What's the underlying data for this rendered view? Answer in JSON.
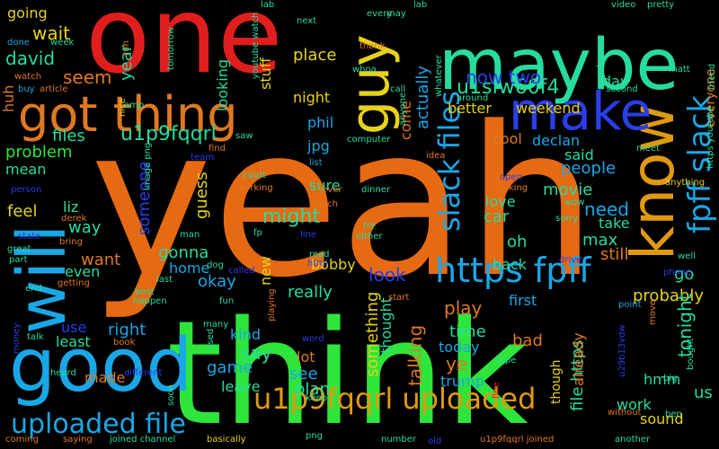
{
  "words": [
    {
      "id": "yeah",
      "text": "yeah",
      "color": "#e56a12"
    },
    {
      "id": "think",
      "text": "think",
      "color": "#2ee53c"
    },
    {
      "id": "one",
      "text": "one",
      "color": "#e01e1e"
    },
    {
      "id": "maybe",
      "text": "maybe",
      "color": "#26dca0"
    },
    {
      "id": "good",
      "text": "good",
      "color": "#1aa7e6"
    },
    {
      "id": "got-thing",
      "text": "got thing",
      "color": "#e07820"
    },
    {
      "id": "will",
      "text": "will",
      "color": "#1aa7e6"
    },
    {
      "id": "know",
      "text": "know",
      "color": "#e09a10"
    },
    {
      "id": "make",
      "text": "make",
      "color": "#2a3ee8"
    },
    {
      "id": "guy",
      "text": "guy",
      "color": "#e6d21a"
    },
    {
      "id": "uploaded-file",
      "text": "uploaded file",
      "color": "#1aa7e6"
    },
    {
      "id": "u1p9fqqrl-uploaded",
      "text": "u1p9fqqrl uploaded",
      "color": "#e09a10"
    },
    {
      "id": "https-fpff",
      "text": "https fpff",
      "color": "#1aa7e6"
    },
    {
      "id": "slack-files",
      "text": "slack files",
      "color": "#1aa7e6"
    },
    {
      "id": "fpff-slack",
      "text": "fpff slack",
      "color": "#1aa7e6"
    },
    {
      "id": "u1p9fqqrl",
      "text": "u1p9fqqrl",
      "color": "#26dca0"
    },
    {
      "id": "u1sfw60f4",
      "text": "u1sfw60f4",
      "color": "#26dca0"
    },
    {
      "id": "now-two",
      "text": "now two",
      "color": "#2a3ee8"
    },
    {
      "id": "wait",
      "text": "wait",
      "color": "#e6d21a"
    },
    {
      "id": "david",
      "text": "david",
      "color": "#26dca0"
    },
    {
      "id": "seem",
      "text": "seem",
      "color": "#e07820"
    },
    {
      "id": "files",
      "text": "files",
      "color": "#26dca0"
    },
    {
      "id": "problem",
      "text": "problem",
      "color": "#2ee53c"
    },
    {
      "id": "mean",
      "text": "mean",
      "color": "#26dca0"
    },
    {
      "id": "feel",
      "text": "feel",
      "color": "#e6d21a"
    },
    {
      "id": "liz",
      "text": "liz",
      "color": "#26dca0"
    },
    {
      "id": "way",
      "text": "way",
      "color": "#26dca0"
    },
    {
      "id": "gonna",
      "text": "gonna",
      "color": "#26dca0"
    },
    {
      "id": "home",
      "text": "home",
      "color": "#1aa7e6"
    },
    {
      "id": "want",
      "text": "want",
      "color": "#e07820"
    },
    {
      "id": "even",
      "text": "even",
      "color": "#26dca0"
    },
    {
      "id": "right",
      "text": "right",
      "color": "#1aa7e6"
    },
    {
      "id": "least",
      "text": "least",
      "color": "#26dca0"
    },
    {
      "id": "use",
      "text": "use",
      "color": "#2a3ee8"
    },
    {
      "id": "made",
      "text": "made",
      "color": "#e07820"
    },
    {
      "id": "okay",
      "text": "okay",
      "color": "#1aa7e6"
    },
    {
      "id": "game",
      "text": "game",
      "color": "#1aa7e6"
    },
    {
      "id": "leave",
      "text": "leave",
      "color": "#26dca0"
    },
    {
      "id": "say",
      "text": "say",
      "color": "#26dca0"
    },
    {
      "id": "kind",
      "text": "kind",
      "color": "#1aa7e6"
    },
    {
      "id": "might",
      "text": "might",
      "color": "#26dca0"
    },
    {
      "id": "bobby",
      "text": "bobby",
      "color": "#e6d21a"
    },
    {
      "id": "look",
      "text": "look",
      "color": "#2a3ee8"
    },
    {
      "id": "really",
      "text": "really",
      "color": "#26dca0"
    },
    {
      "id": "lot",
      "text": "lot",
      "color": "#e07820"
    },
    {
      "id": "see",
      "text": "see",
      "color": "#1aa7e6"
    },
    {
      "id": "plan",
      "text": "plan",
      "color": "#26dca0"
    },
    {
      "id": "something",
      "text": "something",
      "color": "#e6d21a"
    },
    {
      "id": "thought",
      "text": "thought",
      "color": "#26dca0"
    },
    {
      "id": "talking",
      "text": "talking",
      "color": "#e07820"
    },
    {
      "id": "play",
      "text": "play",
      "color": "#e07820"
    },
    {
      "id": "time",
      "text": "time",
      "color": "#26dca0"
    },
    {
      "id": "today",
      "text": "today",
      "color": "#1aa7e6"
    },
    {
      "id": "trump",
      "text": "trump",
      "color": "#1aa7e6"
    },
    {
      "id": "ye",
      "text": "ye",
      "color": "#e07820"
    },
    {
      "id": "bad",
      "text": "bad",
      "color": "#e07820"
    },
    {
      "id": "first",
      "text": "first",
      "color": "#1aa7e6"
    },
    {
      "id": "back",
      "text": "back",
      "color": "#26dca0"
    },
    {
      "id": "oh",
      "text": "oh",
      "color": "#26dca0"
    },
    {
      "id": "car",
      "text": "car",
      "color": "#26dca0"
    },
    {
      "id": "love",
      "text": "love",
      "color": "#26dca0"
    },
    {
      "id": "max",
      "text": "max",
      "color": "#26dca0"
    },
    {
      "id": "movie",
      "text": "movie",
      "color": "#26dca0"
    },
    {
      "id": "need",
      "text": "need",
      "color": "#1aa7e6"
    },
    {
      "id": "take",
      "text": "take",
      "color": "#26dca0"
    },
    {
      "id": "still",
      "text": "still",
      "color": "#e07820"
    },
    {
      "id": "go",
      "text": "go",
      "color": "#26dca0"
    },
    {
      "id": "people",
      "text": "people",
      "color": "#1aa7e6"
    },
    {
      "id": "said",
      "text": "said",
      "color": "#26dca0"
    },
    {
      "id": "cool",
      "text": "cool",
      "color": "#e07820"
    },
    {
      "id": "declan",
      "text": "declan",
      "color": "#1aa7e6"
    },
    {
      "id": "day",
      "text": "day",
      "color": "#26dca0"
    },
    {
      "id": "probably",
      "text": "probably",
      "color": "#e6d21a"
    },
    {
      "id": "tonight",
      "text": "tonight",
      "color": "#26dca0"
    },
    {
      "id": "file-https",
      "text": "file https",
      "color": "#26dca0"
    },
    {
      "id": "though",
      "text": "though",
      "color": "#e6d21a"
    },
    {
      "id": "already",
      "text": "already",
      "color": "#e07820"
    },
    {
      "id": "hmm",
      "text": "hmm",
      "color": "#26dca0"
    },
    {
      "id": "work",
      "text": "work",
      "color": "#26dca0"
    },
    {
      "id": "sound",
      "text": "sound",
      "color": "#e6d21a"
    },
    {
      "id": "us",
      "text": "us",
      "color": "#26dca0"
    },
    {
      "id": "everyone",
      "text": "everyone",
      "color": "#e07820"
    },
    {
      "id": "better",
      "text": "better",
      "color": "#e6d21a"
    },
    {
      "id": "weekend",
      "text": "weekend",
      "color": "#e6d21a"
    },
    {
      "id": "place",
      "text": "place",
      "color": "#e6d21a"
    },
    {
      "id": "night",
      "text": "night",
      "color": "#e6d21a"
    },
    {
      "id": "phil",
      "text": "phil",
      "color": "#1aa7e6"
    },
    {
      "id": "jpg",
      "text": "jpg",
      "color": "#1aa7e6"
    },
    {
      "id": "actually",
      "text": "actually",
      "color": "#1aa7e6"
    },
    {
      "id": "come",
      "text": "come",
      "color": "#e07820"
    },
    {
      "id": "sure",
      "text": "sure",
      "color": "#26dca0"
    },
    {
      "id": "guess",
      "text": "guess",
      "color": "#e6d21a"
    },
    {
      "id": "someone",
      "text": "someone",
      "color": "#2a3ee8"
    },
    {
      "id": "looking",
      "text": "looking",
      "color": "#26dca0"
    },
    {
      "id": "stuff",
      "text": "stuff",
      "color": "#e6d21a"
    },
    {
      "id": "year",
      "text": "year",
      "color": "#26dca0"
    },
    {
      "id": "going",
      "text": "going",
      "color": "#e6d21a"
    },
    {
      "id": "huh",
      "text": "huh",
      "color": "#e07820"
    },
    {
      "id": "new",
      "text": "new",
      "color": "#e6d21a"
    },
    {
      "id": "small-watch",
      "text": "watch",
      "color": "#e07820"
    },
    {
      "id": "small-done",
      "text": "done",
      "color": "#1aa7e6"
    },
    {
      "id": "small-week",
      "text": "week",
      "color": "#26dca0"
    },
    {
      "id": "small-buy",
      "text": "buy",
      "color": "#1aa7e6"
    },
    {
      "id": "small-article",
      "text": "article",
      "color": "#e07820"
    },
    {
      "id": "small-tomorrow",
      "text": "tomorrow",
      "color": "#26dca0"
    },
    {
      "id": "small-run",
      "text": "run",
      "color": "#e07820"
    },
    {
      "id": "small-lab",
      "text": "lab",
      "color": "#26dca0"
    },
    {
      "id": "small-youtube-watch",
      "text": "youtube watch",
      "color": "#26dca0"
    },
    {
      "id": "small-next",
      "text": "next",
      "color": "#26dca0"
    },
    {
      "id": "small-every",
      "text": "every",
      "color": "#26dca0"
    },
    {
      "id": "small-may",
      "text": "may",
      "color": "#26dca0"
    },
    {
      "id": "small-lab2",
      "text": "lab",
      "color": "#26dca0"
    },
    {
      "id": "small-video",
      "text": "video",
      "color": "#26dca0"
    },
    {
      "id": "small-pretty",
      "text": "pretty",
      "color": "#26dca0"
    },
    {
      "id": "small-thank",
      "text": "thank",
      "color": "#e07820"
    },
    {
      "id": "small-whoa",
      "text": "whoa",
      "color": "#26dca0"
    },
    {
      "id": "small-whatever",
      "text": "whatever",
      "color": "#26dca0"
    },
    {
      "id": "small-call",
      "text": "call",
      "color": "#26dca0"
    },
    {
      "id": "small-around",
      "text": "around",
      "color": "#26dca0"
    },
    {
      "id": "small-second",
      "text": "second",
      "color": "#26dca0"
    },
    {
      "id": "small-show",
      "text": "show",
      "color": "#26dca0"
    },
    {
      "id": "small-matt",
      "text": "matt",
      "color": "#26dca0"
    },
    {
      "id": "small-friend",
      "text": "friend",
      "color": "#26dca0"
    },
    {
      "id": "small-nice",
      "text": "nice",
      "color": "#e6d21a"
    },
    {
      "id": "small-amp",
      "text": "amp",
      "color": "#26dca0"
    },
    {
      "id": "small-anyone",
      "text": "anyone",
      "color": "#26dca0"
    },
    {
      "id": "small-computer",
      "text": "computer",
      "color": "#26dca0"
    },
    {
      "id": "small-idea",
      "text": "idea",
      "color": "#e07820"
    },
    {
      "id": "small-meet",
      "text": "meet",
      "color": "#26dca0"
    },
    {
      "id": "small-https-youtube",
      "text": "https youtube",
      "color": "#26dca0"
    },
    {
      "id": "small-find",
      "text": "find",
      "color": "#e07820"
    },
    {
      "id": "small-saw",
      "text": "saw",
      "color": "#26dca0"
    },
    {
      "id": "small-image-png",
      "text": "image png",
      "color": "#26dca0"
    },
    {
      "id": "small-team",
      "text": "team",
      "color": "#2a3ee8"
    },
    {
      "id": "small-list",
      "text": "list",
      "color": "#1aa7e6"
    },
    {
      "id": "small-court",
      "text": "court",
      "color": "#26dca0"
    },
    {
      "id": "small-working",
      "text": "working",
      "color": "#e07820"
    },
    {
      "id": "small-open",
      "text": "open",
      "color": "#2a3ee8"
    },
    {
      "id": "small-making",
      "text": "making",
      "color": "#e07820"
    },
    {
      "id": "small-anything",
      "text": "anything",
      "color": "#e6d21a"
    },
    {
      "id": "small-person",
      "text": "person",
      "color": "#2a3ee8"
    },
    {
      "id": "small-never",
      "text": "never",
      "color": "#e07820"
    },
    {
      "id": "small-dinner",
      "text": "dinner",
      "color": "#26dca0"
    },
    {
      "id": "small-wow",
      "text": "wow",
      "color": "#26dca0"
    },
    {
      "id": "small-much",
      "text": "much",
      "color": "#e07820"
    },
    {
      "id": "small-derek",
      "text": "derek",
      "color": "#e07820"
    },
    {
      "id": "small-sorry",
      "text": "sorry",
      "color": "#26dca0"
    },
    {
      "id": "small-man",
      "text": "man",
      "color": "#26dca0"
    },
    {
      "id": "small-fp",
      "text": "fp",
      "color": "#26dca0"
    },
    {
      "id": "small-line",
      "text": "line",
      "color": "#2a3ee8"
    },
    {
      "id": "small-try",
      "text": "try",
      "color": "#26dca0"
    },
    {
      "id": "small-either",
      "text": "either",
      "color": "#26dca0"
    },
    {
      "id": "small-state",
      "text": "state",
      "color": "#2a3ee8"
    },
    {
      "id": "small-bring",
      "text": "bring",
      "color": "#e07820"
    },
    {
      "id": "small-great",
      "text": "great",
      "color": "#26dca0"
    },
    {
      "id": "small-part",
      "text": "part",
      "color": "#26dca0"
    },
    {
      "id": "small-dog",
      "text": "dog",
      "color": "#26dca0"
    },
    {
      "id": "small-read",
      "text": "read",
      "color": "#26dca0"
    },
    {
      "id": "small-html",
      "text": "html",
      "color": "#2a3ee8"
    },
    {
      "id": "small-drive",
      "text": "drive",
      "color": "#2a3ee8"
    },
    {
      "id": "small-well",
      "text": "well",
      "color": "#26dca0"
    },
    {
      "id": "small-getting",
      "text": "getting",
      "color": "#e07820"
    },
    {
      "id": "small-called",
      "text": "called",
      "color": "#2a3ee8"
    },
    {
      "id": "small-phone",
      "text": "phone",
      "color": "#2a3ee8"
    },
    {
      "id": "small-end",
      "text": "end",
      "color": "#26dca0"
    },
    {
      "id": "small-last",
      "text": "last",
      "color": "#26dca0"
    },
    {
      "id": "small-best",
      "text": "best",
      "color": "#26dca0"
    },
    {
      "id": "small-happen",
      "text": "happen",
      "color": "#26dca0"
    },
    {
      "id": "small-fun",
      "text": "fun",
      "color": "#26dca0"
    },
    {
      "id": "small-playing",
      "text": "playing",
      "color": "#e07820"
    },
    {
      "id": "small-start",
      "text": "start",
      "color": "#e07820"
    },
    {
      "id": "small-point",
      "text": "point",
      "color": "#1aa7e6"
    },
    {
      "id": "small-move",
      "text": "move",
      "color": "#e07820"
    },
    {
      "id": "small-many",
      "text": "many",
      "color": "#26dca0"
    },
    {
      "id": "small-used",
      "text": "used",
      "color": "#26dca0"
    },
    {
      "id": "small-word",
      "text": "word",
      "color": "#2a3ee8"
    },
    {
      "id": "small-u29b13vdw",
      "text": "u29b13vdw",
      "color": "#2a3ee8"
    },
    {
      "id": "small-money",
      "text": "money",
      "color": "#2a3ee8"
    },
    {
      "id": "small-talk",
      "text": "talk",
      "color": "#26dca0"
    },
    {
      "id": "small-book",
      "text": "book",
      "color": "#e07820"
    },
    {
      "id": "small-bought",
      "text": "bought",
      "color": "#26dca0"
    },
    {
      "id": "small-type",
      "text": "type",
      "color": "#26dca0"
    },
    {
      "id": "small-big",
      "text": "big",
      "color": "#26dca0"
    },
    {
      "id": "small-keep",
      "text": "keep",
      "color": "#26dca0"
    },
    {
      "id": "small-heard",
      "text": "heard",
      "color": "#26dca0"
    },
    {
      "id": "small-different",
      "text": "different",
      "color": "#2a3ee8"
    },
    {
      "id": "small-fine",
      "text": "fine",
      "color": "#e01e1e"
    },
    {
      "id": "small-soon",
      "text": "soon",
      "color": "#26dca0"
    },
    {
      "id": "small-without",
      "text": "without",
      "color": "#e07820"
    },
    {
      "id": "small-ben",
      "text": "ben",
      "color": "#26dca0"
    },
    {
      "id": "small-coming",
      "text": "coming",
      "color": "#e07820"
    },
    {
      "id": "small-saying",
      "text": "saying",
      "color": "#e07820"
    },
    {
      "id": "small-joined-channel",
      "text": "joined channel",
      "color": "#26dca0"
    },
    {
      "id": "small-basically",
      "text": "basically",
      "color": "#e6d21a"
    },
    {
      "id": "small-png",
      "text": "png",
      "color": "#26dca0"
    },
    {
      "id": "small-number",
      "text": "number",
      "color": "#26dca0"
    },
    {
      "id": "small-old",
      "text": "old",
      "color": "#2a3ee8"
    },
    {
      "id": "small-u1p9fqqrl-joined",
      "text": "u1p9fqqrl joined",
      "color": "#e07820"
    },
    {
      "id": "small-another",
      "text": "another",
      "color": "#26dca0"
    }
  ]
}
